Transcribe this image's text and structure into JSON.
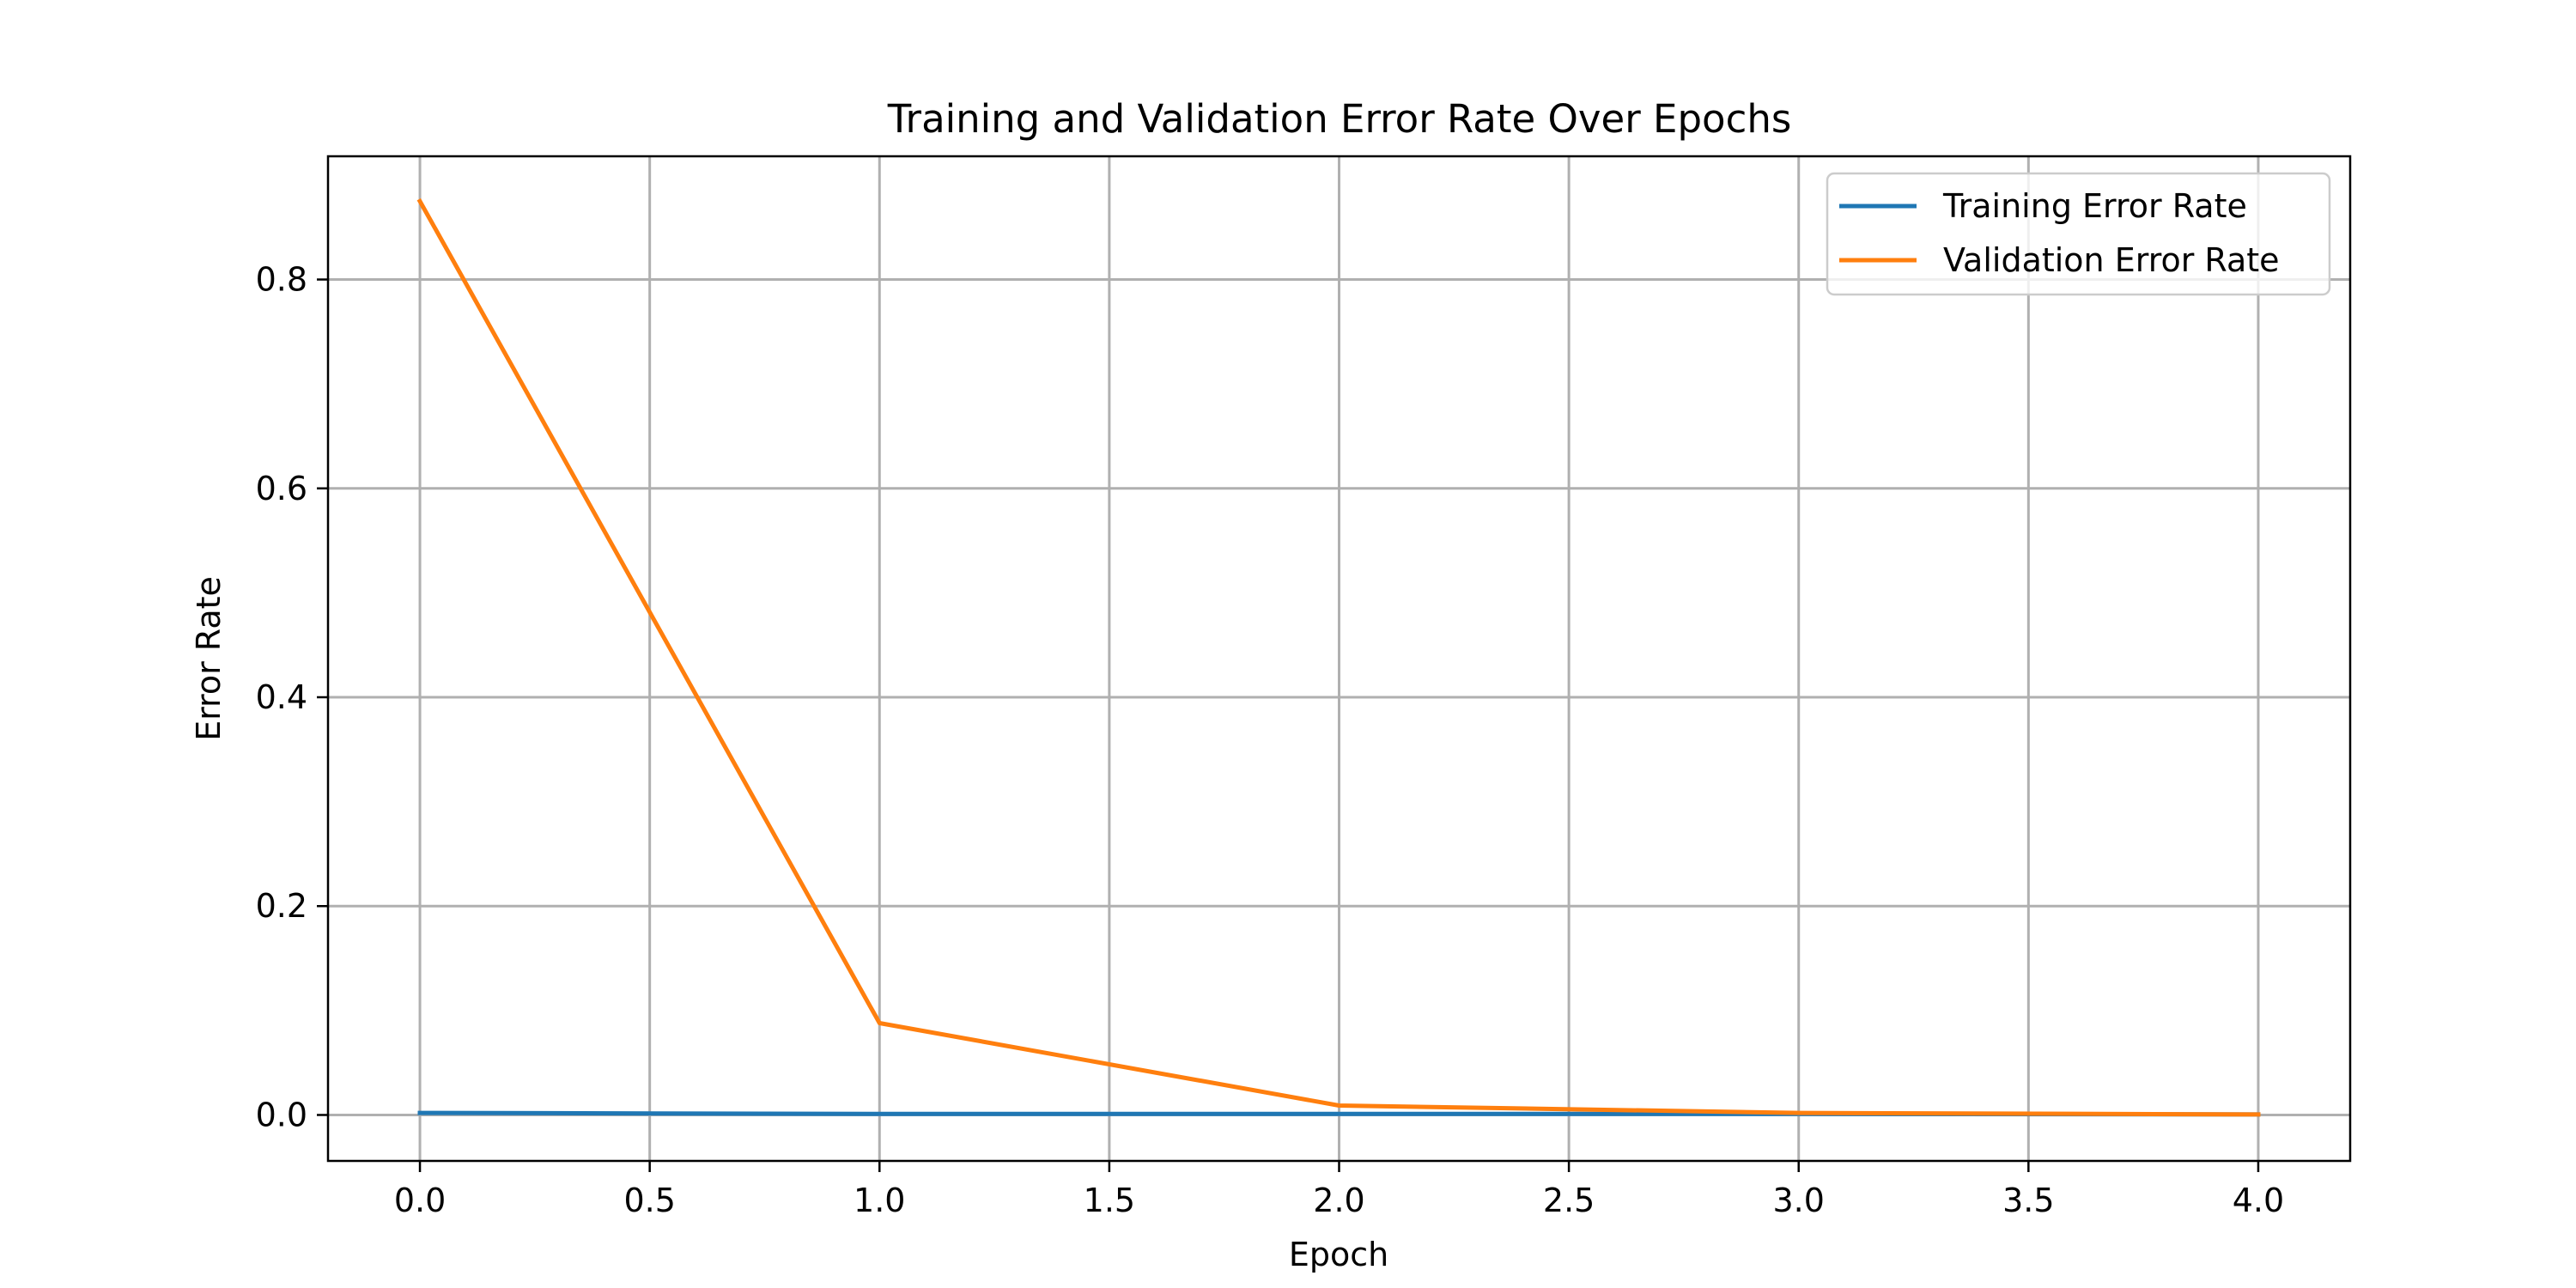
{
  "chart_data": {
    "type": "line",
    "title": "Training and Validation Error Rate Over Epochs",
    "xlabel": "Epoch",
    "ylabel": "Error Rate",
    "x": [
      0,
      1,
      2,
      3,
      4
    ],
    "series": [
      {
        "name": "Training Error Rate",
        "color": "#1f77b4",
        "values": [
          0.002,
          0.001,
          0.001,
          0.001,
          0.0005
        ]
      },
      {
        "name": "Validation Error Rate",
        "color": "#ff7f0e",
        "values": [
          0.875,
          0.088,
          0.009,
          0.002,
          0.0005
        ]
      }
    ],
    "xlim": [
      -0.2,
      4.2
    ],
    "ylim": [
      -0.044,
      0.918
    ],
    "xticks": [
      0.0,
      0.5,
      1.0,
      1.5,
      2.0,
      2.5,
      3.0,
      3.5,
      4.0
    ],
    "xtick_labels": [
      "0.0",
      "0.5",
      "1.0",
      "1.5",
      "2.0",
      "2.5",
      "3.0",
      "3.5",
      "4.0"
    ],
    "yticks": [
      0.0,
      0.2,
      0.4,
      0.6,
      0.8
    ],
    "ytick_labels": [
      "0.0",
      "0.2",
      "0.4",
      "0.6",
      "0.8"
    ],
    "grid": true,
    "legend": "upper right"
  }
}
